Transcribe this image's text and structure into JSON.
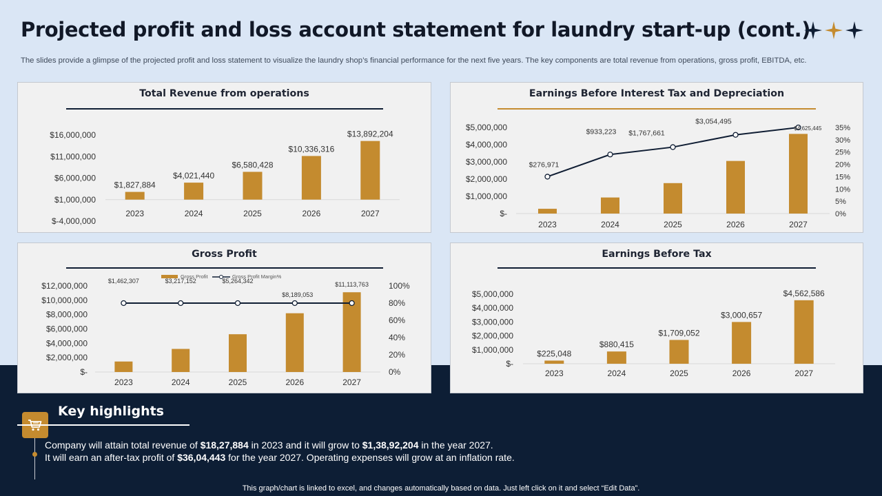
{
  "title": "Projected profit and loss account statement for laundry start-up (cont.)",
  "subtitle": "The slides provide a glimpse of the projected profit and loss statement to visualize the laundry shop’s financial performance for the next five years. The key components are total revenue from operations, gross profit, EBITDA, etc.",
  "colors": {
    "bar": "#c48b2f",
    "line": "#0f1d33",
    "accent": "#c48b2f",
    "dark": "#0d1e35"
  },
  "chart_data": [
    {
      "type": "bar",
      "title": "Total Revenue from operations",
      "categories": [
        "2023",
        "2024",
        "2025",
        "2026",
        "2027"
      ],
      "values": [
        1827884,
        4021440,
        6580428,
        10336316,
        13892204
      ],
      "data_labels": [
        "$1,827,884",
        "$4,021,440",
        "$6,580,428",
        "$10,336,316",
        "$13,892,204"
      ],
      "y_ticks": [
        "$16,000,000",
        "$11,000,000",
        "$6,000,000",
        "$1,000,000",
        "$-4,000,000"
      ],
      "ylim": [
        -4000000,
        16000000
      ],
      "rule_color": "#0f1d33"
    },
    {
      "type": "bar+line",
      "title": "Earnings Before Interest Tax and Depreciation",
      "categories": [
        "2023",
        "2024",
        "2025",
        "2026",
        "2027"
      ],
      "values": [
        276971,
        933223,
        1767661,
        3054495,
        4625445
      ],
      "data_labels": [
        "$276,971",
        "$933,223",
        "$1,767,661",
        "$3,054,495",
        "$4,625,445"
      ],
      "line_values": [
        15,
        24,
        27,
        32,
        35
      ],
      "y_ticks": [
        "$5,000,000",
        "$4,000,000",
        "$3,000,000",
        "$2,000,000",
        "$1,000,000",
        "$-"
      ],
      "y2_ticks": [
        "35%",
        "30%",
        "25%",
        "20%",
        "15%",
        "10%",
        "5%",
        "0%"
      ],
      "ylim": [
        0,
        5000000
      ],
      "y2lim": [
        0,
        35
      ],
      "rule_color": "#c48b2f"
    },
    {
      "type": "bar+line",
      "title": "Gross Profit",
      "categories": [
        "2023",
        "2024",
        "2025",
        "2026",
        "2027"
      ],
      "values": [
        1462307,
        3217152,
        5264342,
        8189053,
        11113763
      ],
      "data_labels": [
        "$1,462,307",
        "$3,217,152",
        "$5,264,342",
        "$8,189,053",
        "$11,113,763"
      ],
      "line_values": [
        80,
        80,
        80,
        80,
        80
      ],
      "legend": [
        "Gross Profit",
        "Gross Profit Margin%"
      ],
      "legend_position": "top",
      "y_ticks": [
        "$12,000,000",
        "$10,000,000",
        "$8,000,000",
        "$6,000,000",
        "$4,000,000",
        "$2,000,000",
        "$-"
      ],
      "y2_ticks": [
        "100%",
        "80%",
        "60%",
        "40%",
        "20%",
        "0%"
      ],
      "ylim": [
        0,
        12000000
      ],
      "y2lim": [
        0,
        100
      ],
      "rule_color": "#0f1d33"
    },
    {
      "type": "bar",
      "title": "Earnings Before Tax",
      "categories": [
        "2023",
        "2024",
        "2025",
        "2026",
        "2027"
      ],
      "values": [
        225048,
        880415,
        1709052,
        3000657,
        4562586
      ],
      "data_labels": [
        "$225,048",
        "$880,415",
        "$1,709,052",
        "$3,000,657",
        "$4,562,586"
      ],
      "y_ticks": [
        "$5,000,000",
        "$4,000,000",
        "$3,000,000",
        "$2,000,000",
        "$1,000,000",
        "$-"
      ],
      "ylim": [
        0,
        5000000
      ],
      "rule_color": "#0f1d33"
    }
  ],
  "highlights": {
    "title": "Key highlights",
    "icon": "cart-icon",
    "line1": {
      "before": "Company will attain total revenue of ",
      "v1": "$18,27,884",
      "mid": " in 2023 and it will grow to ",
      "v2": "$1,38,92,204",
      "after": " in the year 2027."
    },
    "line2": {
      "before": "It will earn an after-tax profit of ",
      "v1": "$36,04,443",
      "after": " for the year 2027. Operating expenses will grow at an inflation rate."
    }
  },
  "footnote": "This graph/chart is linked to excel,  and changes automatically based on data. Just left click on it and select “Edit Data”."
}
